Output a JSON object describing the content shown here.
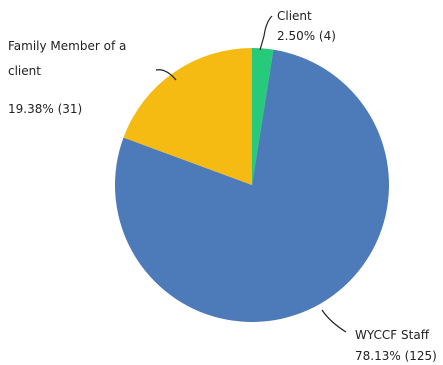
{
  "chart_data": {
    "type": "pie",
    "slices": [
      {
        "name": "Client",
        "percent_text": "2.50% (4)",
        "value": 4,
        "color": "#27c97a"
      },
      {
        "name": "WYCCF Staff",
        "percent_text": "78.13% (125)",
        "value": 125,
        "color": "#4d7ab8"
      },
      {
        "name": "Family Member of a client",
        "percent_text": "19.38% (31)",
        "value": 31,
        "color": "#f6bb13"
      }
    ],
    "labels": {
      "client_name": "Client",
      "client_value": "2.50% (4)",
      "staff_name": "WYCCF Staff",
      "staff_value": "78.13% (125)",
      "family_line1": "Family Member of a",
      "family_line2": "client",
      "family_value": "19.38% (31)"
    },
    "legend": "none"
  }
}
